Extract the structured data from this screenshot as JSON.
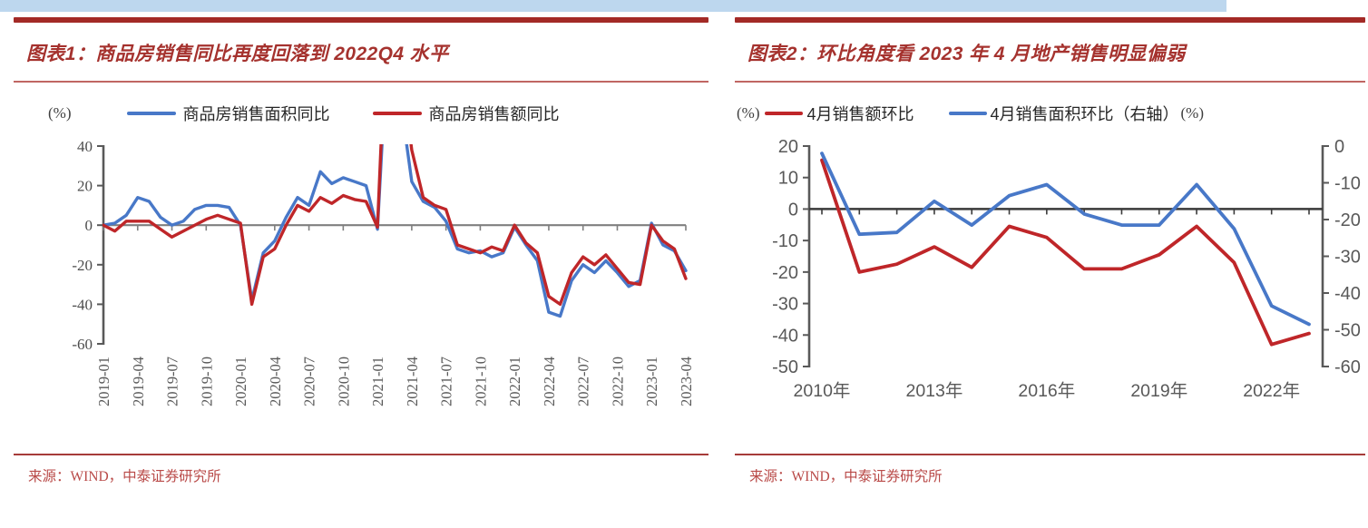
{
  "banner": {
    "color": "#BDD7EE"
  },
  "panels": [
    {
      "title": "图表1：商品房销售同比再度回落到 2022Q4 水平",
      "source": "来源：WIND，中泰证券研究所"
    },
    {
      "title": "图表2：环比角度看 2023 年 4 月地产销售明显偏弱",
      "source": "来源：WIND，中泰证券研究所"
    }
  ],
  "chart_data": [
    {
      "type": "line",
      "title": "图表1：商品房销售同比再度回落到 2022Q4 水平",
      "unit_left": "(%)",
      "legend_position": "top",
      "grid": false,
      "ylim": [
        -60,
        40
      ],
      "yticks": [
        40,
        20,
        0,
        -20,
        -40,
        -60
      ],
      "x_ticks_every": 3,
      "x": [
        "2019-01",
        "2019-02",
        "2019-03",
        "2019-04",
        "2019-05",
        "2019-06",
        "2019-07",
        "2019-08",
        "2019-09",
        "2019-10",
        "2019-11",
        "2019-12",
        "2020-01",
        "2020-02",
        "2020-03",
        "2020-04",
        "2020-05",
        "2020-06",
        "2020-07",
        "2020-08",
        "2020-09",
        "2020-10",
        "2020-11",
        "2020-12",
        "2021-01",
        "2021-02",
        "2021-03",
        "2021-04",
        "2021-05",
        "2021-06",
        "2021-07",
        "2021-08",
        "2021-09",
        "2021-10",
        "2021-11",
        "2021-12",
        "2022-01",
        "2022-02",
        "2022-03",
        "2022-04",
        "2022-05",
        "2022-06",
        "2022-07",
        "2022-08",
        "2022-09",
        "2022-10",
        "2022-11",
        "2022-12",
        "2023-01",
        "2023-02",
        "2023-03",
        "2023-04"
      ],
      "series": [
        {
          "name": "商品房销售面积同比",
          "color": "#4878C8",
          "values": [
            0,
            1,
            5,
            14,
            12,
            4,
            0,
            2,
            8,
            10,
            10,
            9,
            0,
            -38,
            -14,
            -8,
            4,
            14,
            10,
            27,
            21,
            24,
            22,
            20,
            -2,
            105,
            64,
            22,
            12,
            9,
            2,
            -12,
            -14,
            -13,
            -16,
            -14,
            -1,
            -10,
            -18,
            -44,
            -46,
            -28,
            -20,
            -24,
            -18,
            -24,
            -31,
            -28,
            1,
            -10,
            -13,
            -23
          ]
        },
        {
          "name": "商品房销售额同比",
          "color": "#BF2629",
          "values": [
            0,
            -3,
            2,
            2,
            2,
            -2,
            -6,
            -3,
            0,
            3,
            5,
            3,
            1,
            -40,
            -16,
            -12,
            0,
            10,
            7,
            14,
            11,
            15,
            13,
            12,
            -1,
            133,
            83,
            38,
            14,
            10,
            8,
            -10,
            -12,
            -14,
            -11,
            -13,
            0,
            -9,
            -14,
            -36,
            -40,
            -24,
            -16,
            -20,
            -15,
            -22,
            -29,
            -30,
            0,
            -8,
            -12,
            -27
          ]
        }
      ]
    },
    {
      "type": "line",
      "title": "图表2：环比角度看 2023 年 4 月地产销售明显偏弱",
      "unit_left": "(%)",
      "unit_right": "(%)",
      "grid": false,
      "left_ylim": [
        -50,
        20
      ],
      "left_yticks": [
        20,
        10,
        0,
        -10,
        -20,
        -30,
        -40,
        -50
      ],
      "right_ylim": [
        -60,
        0
      ],
      "right_yticks": [
        0,
        -10,
        -20,
        -30,
        -40,
        -50,
        -60
      ],
      "x": [
        "2010",
        "2011",
        "2012",
        "2013",
        "2014",
        "2015",
        "2016",
        "2017",
        "2018",
        "2019",
        "2020",
        "2021",
        "2022",
        "2023"
      ],
      "x_tick_indices": [
        0,
        3,
        6,
        9,
        12
      ],
      "x_tick_labels": [
        "2010年",
        "2013年",
        "2016年",
        "2019年",
        "2022年"
      ],
      "series": [
        {
          "name": "4月销售额环比",
          "axis": "left",
          "color": "#BF2629",
          "values": [
            15.5,
            -20,
            -17.5,
            -12,
            -18.5,
            -5.5,
            -9,
            -19,
            -19,
            -14.5,
            -5.5,
            -17,
            -43,
            -39.5
          ]
        },
        {
          "name": "4月销售面积环比（右轴）",
          "axis": "right",
          "color": "#4878C8",
          "values": [
            -2,
            -24,
            -23.5,
            -15,
            -21.5,
            -13.5,
            -10.5,
            -18.5,
            -21.5,
            -21.5,
            -10.5,
            -22.5,
            -43.5,
            -48.5
          ]
        }
      ]
    }
  ]
}
